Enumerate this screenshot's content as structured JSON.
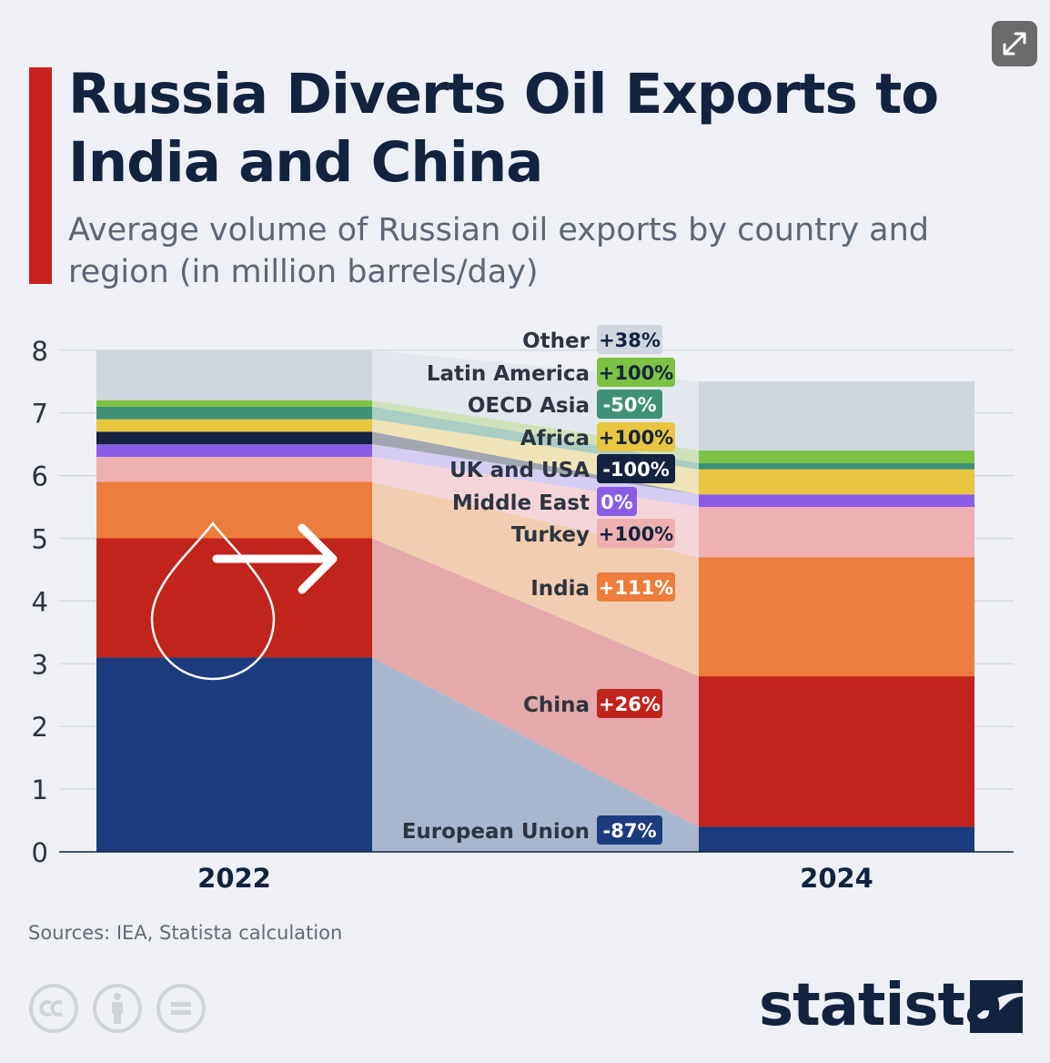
{
  "header": {
    "title": "Russia Diverts Oil Exports to India and China",
    "subtitle": "Average volume of Russian oil exports by country and region (in million barrels/day)"
  },
  "footer": {
    "source": "Sources: IEA, Statista calculation",
    "brand": "statista",
    "license_icons": [
      "cc-icon",
      "attribution-icon",
      "no-derivatives-icon"
    ]
  },
  "colors": {
    "accent_bar": "#c8211e",
    "title": "#13233f",
    "subtitle": "#5d6676"
  },
  "chart_data": {
    "type": "bar",
    "stacked": true,
    "categories": [
      "2022",
      "2024"
    ],
    "ylim": [
      0,
      8
    ],
    "yticks": [
      "0",
      "1",
      "2",
      "3",
      "4",
      "5",
      "6",
      "7",
      "8"
    ],
    "grid": true,
    "legend": "inline labels between bars",
    "series": [
      {
        "name": "European Union",
        "change": "-87%",
        "values": [
          3.1,
          0.4
        ],
        "color": "#1b3c7e",
        "flow": "#a9b7ce",
        "badge": "#1b3c7e",
        "badge_text": "#ffffff"
      },
      {
        "name": "China",
        "change": "+26%",
        "values": [
          1.9,
          2.4
        ],
        "color": "#c0241b",
        "flow": "#e4a9ab",
        "badge": "#c0241b",
        "badge_text": "#ffffff"
      },
      {
        "name": "India",
        "change": "+111%",
        "values": [
          0.9,
          1.9
        ],
        "color": "#ed7d3c",
        "flow": "#f1cdb2",
        "badge": "#ed7d3c",
        "badge_text": "#ffffff"
      },
      {
        "name": "Turkey",
        "change": "+100%",
        "values": [
          0.4,
          0.8
        ],
        "color": "#efb0b2",
        "flow": "#f4d6da",
        "badge": "#efb0b2",
        "badge_text": "#13233f"
      },
      {
        "name": "Middle East",
        "change": "0%",
        "values": [
          0.2,
          0.2
        ],
        "color": "#8a5ce6",
        "flow": "#d6cdf2",
        "badge": "#8a5ce6",
        "badge_text": "#ffffff"
      },
      {
        "name": "UK and USA",
        "change": "-100%",
        "values": [
          0.2,
          0.0
        ],
        "color": "#14213f",
        "flow": "#a2a6b0",
        "badge": "#14213f",
        "badge_text": "#ffffff"
      },
      {
        "name": "Africa",
        "change": "+100%",
        "values": [
          0.2,
          0.4
        ],
        "color": "#e9c640",
        "flow": "#eee4b8",
        "badge": "#e9c640",
        "badge_text": "#13233f"
      },
      {
        "name": "OECD Asia",
        "change": "-50%",
        "values": [
          0.2,
          0.1
        ],
        "color": "#3e9176",
        "flow": "#aacdc4",
        "badge": "#3e9176",
        "badge_text": "#ffffff"
      },
      {
        "name": "Latin America",
        "change": "+100%",
        "values": [
          0.1,
          0.2
        ],
        "color": "#7cc243",
        "flow": "#cfe2b9",
        "badge": "#7cc243",
        "badge_text": "#13233f"
      },
      {
        "name": "Other",
        "change": "+38%",
        "values": [
          0.8,
          1.1
        ],
        "color": "#cfd6df",
        "flow": "#e3e7ee",
        "badge": "#cfd6df",
        "badge_text": "#13233f"
      }
    ]
  }
}
